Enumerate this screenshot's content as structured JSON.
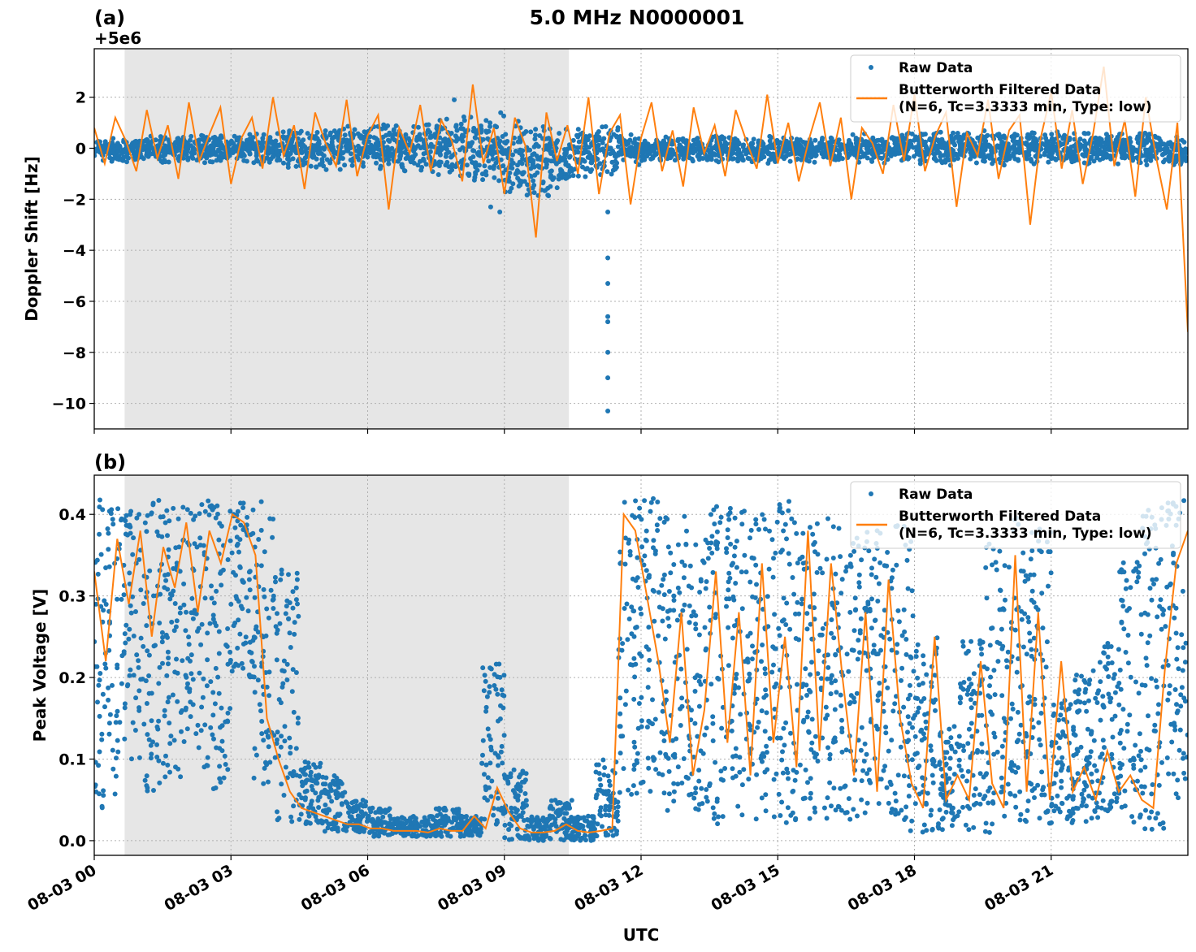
{
  "chart_data": [
    {
      "type": "scatter+line",
      "panel_label": "(a)",
      "title": "5.0 MHz N0000001",
      "ylabel": "Doppler Shift [Hz]",
      "offset_text": "+5e6",
      "ylim": [
        -11,
        3.9
      ],
      "yticks": [
        2,
        0,
        -2,
        -4,
        -6,
        -8,
        -10
      ],
      "ytick_labels": [
        "2",
        "0",
        "−2",
        "−4",
        "−6",
        "−8",
        "−10"
      ],
      "xlim_hours": [
        0,
        24
      ],
      "grid": true,
      "shaded_span_utc": [
        "00:40",
        "10:25"
      ],
      "legend": {
        "placement": "top-right",
        "entries": [
          "Raw Data",
          "Butterworth Filtered Data",
          "(N=6, Tc=3.3333 min, Type: low)"
        ]
      },
      "colors": {
        "raw": "#1f77b4",
        "filtered": "#ff7f0e",
        "shade": "#e6e6e6"
      },
      "raw_envelope_30min": [
        [
          -0.6,
          0.5
        ],
        [
          -0.6,
          0.5
        ],
        [
          -0.6,
          0.5
        ],
        [
          -0.6,
          0.6
        ],
        [
          -0.6,
          0.6
        ],
        [
          -0.6,
          0.6
        ],
        [
          -0.6,
          0.6
        ],
        [
          -0.7,
          0.7
        ],
        [
          -0.8,
          0.8
        ],
        [
          -0.9,
          0.8
        ],
        [
          -0.9,
          0.9
        ],
        [
          -0.9,
          0.9
        ],
        [
          -1.0,
          1.0
        ],
        [
          -1.0,
          1.0
        ],
        [
          -1.1,
          1.1
        ],
        [
          -1.2,
          1.3
        ],
        [
          -1.4,
          1.4
        ],
        [
          -1.7,
          1.6
        ],
        [
          -2.0,
          1.2
        ],
        [
          -2.2,
          1.2
        ],
        [
          -1.8,
          1.0
        ],
        [
          -1.3,
          0.9
        ],
        [
          -1.3,
          1.1
        ],
        [
          -0.7,
          0.6
        ],
        [
          -0.6,
          0.5
        ],
        [
          -0.6,
          0.5
        ],
        [
          -0.6,
          0.5
        ],
        [
          -0.6,
          0.5
        ],
        [
          -0.6,
          0.5
        ],
        [
          -0.6,
          0.5
        ],
        [
          -0.6,
          0.5
        ],
        [
          -0.6,
          0.5
        ],
        [
          -0.6,
          0.5
        ],
        [
          -0.7,
          0.6
        ],
        [
          -0.6,
          0.5
        ],
        [
          -0.7,
          0.7
        ],
        [
          -0.7,
          0.7
        ],
        [
          -0.7,
          0.7
        ],
        [
          -0.7,
          0.7
        ],
        [
          -0.7,
          0.7
        ],
        [
          -0.7,
          0.7
        ],
        [
          -0.7,
          0.7
        ],
        [
          -0.7,
          0.7
        ],
        [
          -0.7,
          0.7
        ],
        [
          -0.7,
          0.7
        ],
        [
          -0.7,
          0.7
        ],
        [
          -0.8,
          0.7
        ],
        [
          -0.8,
          0.6
        ]
      ],
      "raw_outliers": [
        [
          11.27,
          -2.5
        ],
        [
          11.27,
          -4.3
        ],
        [
          11.27,
          -5.3
        ],
        [
          11.27,
          -6.6
        ],
        [
          11.27,
          -6.8
        ],
        [
          11.27,
          -8.0
        ],
        [
          11.27,
          -9.0
        ],
        [
          11.27,
          -10.3
        ],
        [
          8.9,
          -2.5
        ],
        [
          8.7,
          -2.3
        ],
        [
          7.9,
          1.9
        ]
      ],
      "filtered_15min": [
        0.8,
        -0.6,
        1.2,
        0.3,
        -0.9,
        1.5,
        -0.4,
        0.9,
        -1.2,
        1.8,
        -0.5,
        0.6,
        1.6,
        -1.4,
        0.4,
        1.2,
        -0.8,
        2.0,
        -0.3,
        0.9,
        -1.6,
        1.4,
        0.2,
        -0.7,
        1.9,
        -1.1,
        0.5,
        1.3,
        -2.4,
        0.8,
        -0.2,
        1.7,
        -0.9,
        1.1,
        0.3,
        -1.3,
        2.5,
        -0.6,
        0.8,
        -1.8,
        1.2,
        0.1,
        -3.5,
        1.4,
        -0.5,
        0.9,
        -1.0,
        2.0,
        -1.8,
        0.6,
        1.3,
        -2.2,
        0.4,
        1.8,
        -0.9,
        0.7,
        -1.5,
        1.6,
        -0.2,
        0.9,
        -1.1,
        1.5,
        0.3,
        -0.8,
        2.1,
        -0.6,
        1.0,
        -1.3,
        0.4,
        1.8,
        -0.7,
        1.2,
        -2.0,
        0.8,
        0.2,
        -1.0,
        1.7,
        -0.5,
        2.1,
        -0.9,
        0.5,
        1.4,
        -2.3,
        0.6,
        -0.3,
        1.9,
        -1.2,
        0.7,
        1.3,
        -3.0,
        0.4,
        2.2,
        -0.8,
        1.5,
        -1.4,
        0.6,
        3.2,
        -0.7,
        1.1,
        -1.9,
        2.0,
        -0.4,
        -2.4,
        1.0,
        -7.2
      ]
    },
    {
      "type": "scatter+line",
      "panel_label": "(b)",
      "ylabel": "Peak Voltage [V]",
      "xlabel": "UTC",
      "ylim": [
        -0.018,
        0.448
      ],
      "yticks": [
        0.0,
        0.1,
        0.2,
        0.3,
        0.4
      ],
      "ytick_labels": [
        "0.0",
        "0.1",
        "0.2",
        "0.3",
        "0.4"
      ],
      "xlim_hours": [
        0,
        24
      ],
      "xticks_hours": [
        0,
        3,
        6,
        9,
        12,
        15,
        18,
        21
      ],
      "xtick_labels": [
        "08-03 00",
        "08-03 03",
        "08-03 06",
        "08-03 09",
        "08-03 12",
        "08-03 15",
        "08-03 18",
        "08-03 21"
      ],
      "grid": true,
      "shaded_span_utc": [
        "00:40",
        "10:25"
      ],
      "legend": {
        "placement": "top-right",
        "entries": [
          "Raw Data",
          "Butterworth Filtered Data",
          "(N=6, Tc=3.3333 min, Type: low)"
        ]
      },
      "raw_envelope_30min": [
        [
          0.04,
          0.42
        ],
        [
          0.1,
          0.42
        ],
        [
          0.06,
          0.42
        ],
        [
          0.07,
          0.42
        ],
        [
          0.09,
          0.42
        ],
        [
          0.06,
          0.42
        ],
        [
          0.2,
          0.42
        ],
        [
          0.05,
          0.42
        ],
        [
          0.02,
          0.34
        ],
        [
          0.02,
          0.1
        ],
        [
          0.01,
          0.08
        ],
        [
          0.01,
          0.05
        ],
        [
          0.005,
          0.04
        ],
        [
          0.005,
          0.03
        ],
        [
          0.005,
          0.03
        ],
        [
          0.005,
          0.04
        ],
        [
          0.005,
          0.03
        ],
        [
          0.01,
          0.22
        ],
        [
          0.0,
          0.09
        ],
        [
          0.0,
          0.03
        ],
        [
          0.0,
          0.05
        ],
        [
          0.0,
          0.03
        ],
        [
          0.005,
          0.1
        ],
        [
          0.05,
          0.42
        ],
        [
          0.05,
          0.42
        ],
        [
          0.03,
          0.4
        ],
        [
          0.03,
          0.38
        ],
        [
          0.02,
          0.41
        ],
        [
          0.03,
          0.41
        ],
        [
          0.02,
          0.4
        ],
        [
          0.02,
          0.42
        ],
        [
          0.02,
          0.4
        ],
        [
          0.02,
          0.41
        ],
        [
          0.02,
          0.38
        ],
        [
          0.02,
          0.38
        ],
        [
          0.01,
          0.39
        ],
        [
          0.01,
          0.25
        ],
        [
          0.01,
          0.14
        ],
        [
          0.01,
          0.25
        ],
        [
          0.01,
          0.37
        ],
        [
          0.01,
          0.4
        ],
        [
          0.02,
          0.39
        ],
        [
          0.02,
          0.18
        ],
        [
          0.02,
          0.21
        ],
        [
          0.02,
          0.25
        ],
        [
          0.02,
          0.35
        ],
        [
          0.01,
          0.41
        ],
        [
          0.05,
          0.42
        ]
      ],
      "filtered_15min": [
        0.33,
        0.22,
        0.37,
        0.29,
        0.38,
        0.25,
        0.36,
        0.31,
        0.39,
        0.28,
        0.38,
        0.34,
        0.4,
        0.39,
        0.35,
        0.15,
        0.1,
        0.06,
        0.04,
        0.035,
        0.03,
        0.025,
        0.02,
        0.02,
        0.015,
        0.015,
        0.012,
        0.012,
        0.012,
        0.01,
        0.015,
        0.012,
        0.012,
        0.03,
        0.015,
        0.065,
        0.035,
        0.015,
        0.01,
        0.01,
        0.012,
        0.02,
        0.012,
        0.01,
        0.012,
        0.015,
        0.4,
        0.38,
        0.3,
        0.22,
        0.12,
        0.28,
        0.08,
        0.16,
        0.33,
        0.12,
        0.28,
        0.08,
        0.34,
        0.12,
        0.25,
        0.09,
        0.38,
        0.11,
        0.34,
        0.2,
        0.08,
        0.28,
        0.06,
        0.32,
        0.15,
        0.07,
        0.04,
        0.25,
        0.05,
        0.08,
        0.05,
        0.22,
        0.07,
        0.04,
        0.35,
        0.06,
        0.28,
        0.05,
        0.22,
        0.06,
        0.09,
        0.05,
        0.11,
        0.06,
        0.08,
        0.05,
        0.04,
        0.21,
        0.34,
        0.38
      ]
    }
  ]
}
